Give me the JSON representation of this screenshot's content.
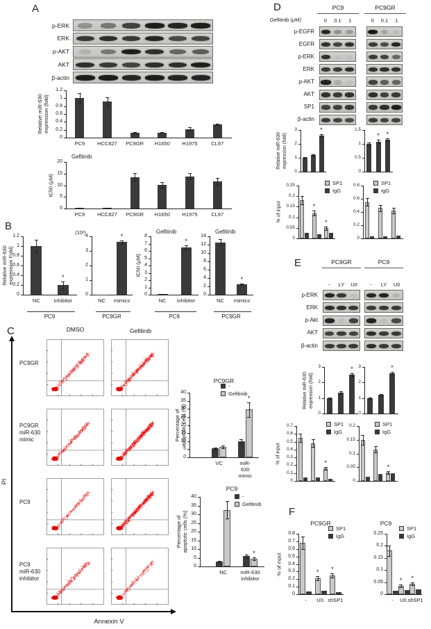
{
  "panelA": {
    "label": "A",
    "blot_rows": [
      {
        "label": "p-ERK",
        "strips": [
          [
            0.3,
            0.45,
            0.75,
            0.95,
            0.9,
            0.95
          ]
        ]
      },
      {
        "label": "ERK",
        "strips": [
          [
            0.8,
            0.85,
            0.8,
            0.9,
            0.7,
            0.75
          ]
        ]
      },
      {
        "label": "p-AKT",
        "strips": [
          [
            0.12,
            0.45,
            0.95,
            0.85,
            0.55,
            0.6
          ]
        ]
      },
      {
        "label": "AKT",
        "strips": [
          [
            0.85,
            0.8,
            0.75,
            0.85,
            0.85,
            0.95
          ]
        ]
      },
      {
        "label": "β-actin",
        "strips": [
          [
            0.95,
            0.95,
            0.9,
            0.95,
            0.9,
            0.9
          ]
        ]
      }
    ]
  },
  "panelB": {
    "label": "B"
  },
  "panelC": {
    "label": "C",
    "col_headers": [
      "DMSO",
      "Gefitinib"
    ],
    "row_labels": [
      [
        "PC9GR"
      ],
      [
        "PC9GR",
        "miR-630",
        "mimic"
      ],
      [
        "PC9"
      ],
      [
        "PC9",
        "miR-630",
        "inhibitor"
      ]
    ],
    "x_axis": "Annexin V",
    "y_axis": "PI",
    "spray": [
      [
        150,
        230
      ],
      [
        150,
        340
      ],
      [
        110,
        340
      ],
      [
        150,
        110
      ]
    ]
  },
  "panelD": {
    "label": "D",
    "cell_headers": [
      "PC9",
      "PC9GR"
    ],
    "dose_label": "Gefitinib (μM)",
    "doses": [
      "0",
      "0.1",
      "1"
    ],
    "blot_rows": [
      {
        "label": "p-EGFR",
        "strips": [
          [
            0.9,
            0.3,
            0.25
          ],
          [
            0.98,
            0.2,
            0.08
          ]
        ]
      },
      {
        "label": "EGFR",
        "strips": [
          [
            0.85,
            0.75,
            0.85
          ],
          [
            0.8,
            0.7,
            0.9
          ]
        ]
      },
      {
        "label": "p-ERK",
        "strips": [
          [
            0.85,
            0.04,
            0.04
          ],
          [
            0.8,
            0.75,
            0.55
          ]
        ]
      },
      {
        "label": "ERK",
        "strips": [
          [
            0.8,
            0.8,
            0.85
          ],
          [
            0.85,
            0.85,
            0.85
          ]
        ]
      },
      {
        "label": "p-AKT",
        "strips": [
          [
            0.92,
            0.15,
            0.04
          ],
          [
            0.75,
            0.6,
            0.55
          ]
        ]
      },
      {
        "label": "AKT",
        "strips": [
          [
            0.85,
            0.8,
            0.85
          ],
          [
            0.85,
            0.75,
            0.8
          ]
        ]
      },
      {
        "label": "SP1",
        "strips": [
          [
            0.75,
            0.75,
            0.8
          ],
          [
            0.8,
            0.85,
            0.95
          ]
        ]
      },
      {
        "label": "β-actin",
        "strips": [
          [
            0.8,
            0.75,
            0.7
          ],
          [
            0.8,
            0.75,
            0.75
          ]
        ]
      }
    ]
  },
  "panelE": {
    "label": "E",
    "cell_headers": [
      "PC9GR",
      "PC9"
    ],
    "treatments": [
      "-",
      "LY",
      "U0"
    ],
    "blot_rows": [
      {
        "label": "p-ERK",
        "strips": [
          [
            0.9,
            0.8,
            0.05
          ],
          [
            0.9,
            0.92,
            0.12
          ]
        ]
      },
      {
        "label": "ERK",
        "strips": [
          [
            0.85,
            0.85,
            0.8
          ],
          [
            0.8,
            0.8,
            0.8
          ]
        ]
      },
      {
        "label": "p-Akt",
        "strips": [
          [
            0.9,
            0.05,
            0.75
          ],
          [
            0.92,
            0.05,
            0.7
          ]
        ]
      },
      {
        "label": "AKT",
        "strips": [
          [
            0.75,
            0.8,
            0.75
          ],
          [
            0.88,
            0.8,
            0.8
          ]
        ]
      },
      {
        "label": "β-actin",
        "strips": [
          [
            0.8,
            0.8,
            0.8
          ],
          [
            0.88,
            0.8,
            0.8
          ]
        ]
      }
    ]
  },
  "panelF": {
    "label": "F"
  },
  "chart_data": [
    {
      "id": "a_mir",
      "type": "bar",
      "title": "",
      "ylabel": [
        "Relative miR-630",
        "expression (fold)"
      ],
      "ylim": [
        0,
        1.2
      ],
      "yticks": [
        0,
        0.2,
        0.4,
        0.6,
        0.8,
        1,
        1.2
      ],
      "categories": [
        "PC9",
        "HCC827",
        "PC9GR",
        "H1650",
        "H1975",
        "CL97"
      ],
      "values": [
        1.0,
        0.92,
        0.12,
        0.13,
        0.22,
        0.34
      ],
      "errors": [
        0.13,
        0.1,
        0.02,
        0.015,
        0.05,
        0.015
      ],
      "sig": [
        0,
        0,
        0,
        0,
        0,
        0
      ]
    },
    {
      "id": "a_ic50",
      "type": "bar",
      "title": "Gefitinib",
      "title_pos": "left",
      "ylabel": [
        "IC50 (μM)"
      ],
      "ylim": [
        0,
        20
      ],
      "yticks": [
        0,
        5,
        10,
        15,
        20
      ],
      "categories": [
        "PC9",
        "HCC827",
        "PC9GR",
        "H1650",
        "H1975",
        "CL97"
      ],
      "values": [
        0.15,
        0.15,
        13.5,
        10.2,
        13.8,
        11.6
      ],
      "errors": [
        0.05,
        0.05,
        1.6,
        1.2,
        1.4,
        1.4
      ],
      "sig": [
        0,
        0,
        0,
        0,
        0,
        0
      ]
    },
    {
      "id": "b1",
      "type": "bar",
      "ylabel": [
        "Relative miR-630",
        "expression Fold)"
      ],
      "ylim": [
        0,
        1.2
      ],
      "yticks": [
        0,
        0.2,
        0.4,
        0.6,
        0.8,
        1,
        1.2
      ],
      "categories": [
        "NC",
        "inhibitor"
      ],
      "values": [
        1.0,
        0.2
      ],
      "errors": [
        0.13,
        0.07
      ],
      "sig": [
        0,
        1
      ],
      "group": "PC9"
    },
    {
      "id": "b2",
      "type": "bar",
      "toplabel": "(10³)",
      "ylim": [
        0,
        4
      ],
      "yticks": [
        0,
        1,
        2,
        3,
        4
      ],
      "categories": [
        "NC",
        "mimics"
      ],
      "values": [
        0.02,
        3.6
      ],
      "errors": [
        0,
        0.12
      ],
      "sig": [
        0,
        1
      ],
      "group": "PC9GR"
    },
    {
      "id": "b3",
      "type": "bar",
      "title": "Gefitinib",
      "title_pos": "left",
      "ylabel": [
        "IC50 (μM)"
      ],
      "ylim": [
        0,
        8
      ],
      "yticks": [
        0,
        1,
        2,
        3,
        4,
        5,
        6,
        7,
        8
      ],
      "categories": [
        "NC",
        "inhibitor"
      ],
      "values": [
        0.1,
        6.5
      ],
      "errors": [
        0.02,
        0.3
      ],
      "sig": [
        0,
        1
      ],
      "group": "PC9"
    },
    {
      "id": "b4",
      "type": "bar",
      "title": "Gefitinib",
      "title_pos": "left",
      "ylim": [
        0,
        14
      ],
      "yticks": [
        0,
        2,
        4,
        6,
        8,
        10,
        12,
        14
      ],
      "categories": [
        "NC",
        "mimics"
      ],
      "values": [
        12.5,
        2.5
      ],
      "errors": [
        0.8,
        0.15
      ],
      "sig": [
        0,
        1
      ],
      "group": "PC9GR"
    },
    {
      "id": "c1",
      "type": "bar",
      "title": "PC9GR",
      "title_pos": "center",
      "ylabel": [
        "Percentage of",
        "apoptotic cells (%)"
      ],
      "ylim": [
        0,
        40
      ],
      "yticks": [
        0,
        5,
        10,
        15,
        20,
        25,
        30,
        35,
        40
      ],
      "categories": [
        [
          "VC"
        ],
        [
          "miR-",
          "630",
          "mimic"
        ]
      ],
      "legend": [
        {
          "label": "-",
          "color": "dark"
        },
        {
          "label": "Gefitinib",
          "color": "light"
        }
      ],
      "series": [
        {
          "color": "dark",
          "values": [
            5.5,
            10
          ],
          "errors": [
            0.7,
            1.2
          ],
          "sig": [
            0,
            0
          ]
        },
        {
          "color": "light",
          "values": [
            6.5,
            29.5
          ],
          "errors": [
            0.8,
            4.5
          ],
          "sig": [
            0,
            1
          ]
        }
      ]
    },
    {
      "id": "c2",
      "type": "bar",
      "title": "PC9",
      "title_pos": "center",
      "ylabel": [
        "Percentage of",
        "apoptotic cells (%)"
      ],
      "ylim": [
        0,
        40
      ],
      "yticks": [
        0,
        5,
        10,
        15,
        20,
        25,
        30,
        35,
        40
      ],
      "categories": [
        [
          "NC"
        ],
        [
          "miR-630",
          "inhibitor"
        ]
      ],
      "legend": [
        {
          "label": "-",
          "color": "dark"
        },
        {
          "label": "Gefitinib",
          "color": "light"
        }
      ],
      "series": [
        {
          "color": "dark",
          "values": [
            3,
            6
          ],
          "errors": [
            0.4,
            0.9
          ],
          "sig": [
            0,
            0
          ]
        },
        {
          "color": "light",
          "values": [
            32.5,
            4.5
          ],
          "errors": [
            5,
            0.8
          ],
          "sig": [
            0,
            1
          ]
        }
      ]
    },
    {
      "id": "d_mir_pc9",
      "type": "bar",
      "ylabel": [
        "Relative miR-630",
        "expression (fold)"
      ],
      "ylim": [
        0,
        3
      ],
      "yticks": [
        0,
        1,
        2,
        3
      ],
      "values": [
        1.0,
        1.2,
        2.6
      ],
      "errors": [
        0.05,
        0.07,
        0.1
      ],
      "sig": [
        0,
        0,
        1
      ]
    },
    {
      "id": "d_mir_pc9gr",
      "type": "bar",
      "ylim": [
        0,
        1.5
      ],
      "yticks": [
        0,
        0.5,
        1,
        1.5
      ],
      "values": [
        1.0,
        1.08,
        1.15
      ],
      "errors": [
        0.05,
        0.06,
        0.05
      ],
      "sig": [
        0,
        1,
        1
      ]
    },
    {
      "id": "d_chip_pc9",
      "type": "bar",
      "ylabel": [
        "% of input"
      ],
      "ylim": [
        0,
        0.25
      ],
      "yticks": [
        0,
        0.05,
        0.1,
        0.15,
        0.2,
        0.25
      ],
      "legend": [
        {
          "label": "SP1",
          "color": "light"
        },
        {
          "label": "IgG",
          "color": "dark"
        }
      ],
      "series": [
        {
          "color": "light",
          "values": [
            0.18,
            0.12,
            0.048
          ],
          "errors": [
            0.02,
            0.013,
            0.008
          ],
          "sig": [
            0,
            1,
            1
          ]
        },
        {
          "color": "dark",
          "values": [
            0.025,
            0.02,
            0.026
          ],
          "errors": [
            0,
            0,
            0
          ],
          "sig": [
            0,
            0,
            0
          ]
        }
      ]
    },
    {
      "id": "d_chip_pc9gr",
      "type": "bar",
      "ylim": [
        0,
        0.8
      ],
      "yticks": [
        0,
        0.2,
        0.4,
        0.6,
        0.8
      ],
      "legend": [
        {
          "label": "SP1",
          "color": "light"
        },
        {
          "label": "IgG",
          "color": "dark"
        }
      ],
      "series": [
        {
          "color": "light",
          "values": [
            0.55,
            0.46,
            0.42
          ],
          "errors": [
            0.06,
            0.05,
            0.04
          ],
          "sig": [
            0,
            0,
            0
          ]
        },
        {
          "color": "dark",
          "values": [
            0.03,
            0.03,
            0.04
          ],
          "errors": [
            0,
            0,
            0
          ],
          "sig": [
            0,
            0,
            0
          ]
        }
      ]
    },
    {
      "id": "e_mir_pc9gr",
      "type": "bar",
      "ylabel": [
        "Relative miR-630",
        "expression (fold)"
      ],
      "ylim": [
        0,
        3
      ],
      "yticks": [
        0,
        1,
        2,
        3
      ],
      "values": [
        1.0,
        1.35,
        2.5
      ],
      "errors": [
        0.05,
        0.07,
        0.1
      ],
      "sig": [
        0,
        0,
        1
      ]
    },
    {
      "id": "e_mir_pc9",
      "type": "bar",
      "ylim": [
        0,
        3
      ],
      "yticks": [
        0,
        1,
        2,
        3
      ],
      "values": [
        1.0,
        1.2,
        2.6
      ],
      "errors": [
        0.05,
        0.06,
        0.1
      ],
      "sig": [
        0,
        0,
        1
      ]
    },
    {
      "id": "e_chip_pc9gr",
      "type": "bar",
      "ylabel": [
        "% of input"
      ],
      "ylim": [
        0,
        0.7
      ],
      "yticks": [
        0,
        0.1,
        0.2,
        0.3,
        0.4,
        0.5,
        0.6,
        0.7
      ],
      "legend": [
        {
          "label": "SP1",
          "color": "light"
        },
        {
          "label": "IgG",
          "color": "dark"
        }
      ],
      "series": [
        {
          "color": "light",
          "values": [
            0.55,
            0.48,
            0.16
          ],
          "errors": [
            0.05,
            0.05,
            0.02
          ],
          "sig": [
            0,
            0,
            1
          ]
        },
        {
          "color": "dark",
          "values": [
            0.04,
            0.04,
            0.03
          ],
          "errors": [
            0,
            0,
            0
          ],
          "sig": [
            0,
            0,
            0
          ]
        }
      ]
    },
    {
      "id": "e_chip_pc9",
      "type": "bar",
      "ylim": [
        0,
        0.2
      ],
      "yticks": [
        0,
        0.05,
        0.1,
        0.15,
        0.2
      ],
      "legend": [
        {
          "label": "SP1",
          "color": "light"
        },
        {
          "label": "IgG",
          "color": "dark"
        }
      ],
      "series": [
        {
          "color": "light",
          "values": [
            0.15,
            0.115,
            0.03
          ],
          "errors": [
            0.018,
            0.012,
            0.005
          ],
          "sig": [
            0,
            0,
            1
          ]
        },
        {
          "color": "dark",
          "values": [
            0.015,
            0.025,
            0.028
          ],
          "errors": [
            0,
            0,
            0
          ],
          "sig": [
            0,
            0,
            0
          ]
        }
      ]
    },
    {
      "id": "f_pc9gr",
      "type": "bar",
      "title": "PC9GR",
      "title_pos": "center",
      "ylabel": [
        "% of input"
      ],
      "ylim": [
        0,
        0.8
      ],
      "yticks": [
        0,
        0.1,
        0.2,
        0.3,
        0.4,
        0.5,
        0.6,
        0.7,
        0.8
      ],
      "categories": [
        "-",
        "U0.",
        "shSP1"
      ],
      "legend": [
        {
          "label": "SP1",
          "color": "light"
        },
        {
          "label": "IgG",
          "color": "dark"
        }
      ],
      "series": [
        {
          "color": "light",
          "values": [
            0.68,
            0.21,
            0.25
          ],
          "errors": [
            0.08,
            0.025,
            0.03
          ],
          "sig": [
            0,
            1,
            1
          ]
        },
        {
          "color": "dark",
          "values": [
            0.035,
            0.045,
            0.025
          ],
          "errors": [
            0,
            0,
            0
          ],
          "sig": [
            0,
            0,
            0
          ]
        }
      ]
    },
    {
      "id": "f_pc9",
      "type": "bar",
      "title": "PC9",
      "title_pos": "center",
      "ylim": [
        0,
        0.25
      ],
      "yticks": [
        0,
        0.05,
        0.1,
        0.15,
        0.2,
        0.25
      ],
      "categories": [
        "-",
        "U0.",
        "shSP1"
      ],
      "legend": [
        {
          "label": "SP1",
          "color": "light"
        },
        {
          "label": "IgG",
          "color": "dark"
        }
      ],
      "series": [
        {
          "color": "light",
          "values": [
            0.18,
            0.035,
            0.042
          ],
          "errors": [
            0.022,
            0.006,
            0.006
          ],
          "sig": [
            0,
            1,
            1
          ]
        },
        {
          "color": "dark",
          "values": [
            0.015,
            0.018,
            0.02
          ],
          "errors": [
            0,
            0,
            0
          ],
          "sig": [
            0,
            0,
            0
          ]
        }
      ]
    }
  ]
}
